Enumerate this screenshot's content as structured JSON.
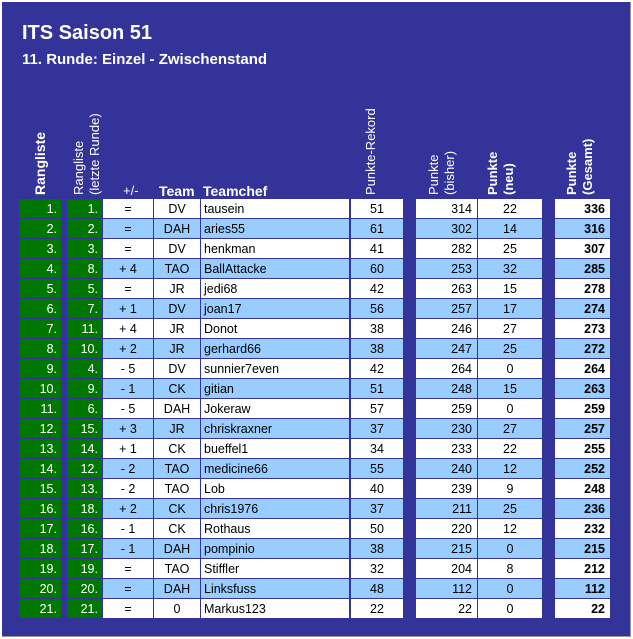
{
  "title": "ITS Saison 51",
  "subtitle": "11. Runde: Einzel - Zwischenstand",
  "headers": {
    "rangliste": "Rangliste",
    "rangliste_alt_1": "Rangliste",
    "rangliste_alt_2": "(letzte Runde)",
    "diff": "+/-",
    "team": "Team",
    "teamchef": "Teamchef",
    "rekord": "Punkte-Rekord",
    "bisher_1": "Punkte",
    "bisher_2": "(bisher)",
    "neu_1": "Punkte",
    "neu_2": "(neu)",
    "gesamt_1": "Punkte",
    "gesamt_2": "(Gesamt)"
  },
  "rows": [
    {
      "rank": "1.",
      "prev": "1.",
      "diff": "=",
      "team": "DV",
      "chef": "tausein",
      "rekord": "51",
      "bisher": "314",
      "neu": "22",
      "gesamt": "336"
    },
    {
      "rank": "2.",
      "prev": "2.",
      "diff": "=",
      "team": "DAH",
      "chef": "aries55",
      "rekord": "61",
      "bisher": "302",
      "neu": "14",
      "gesamt": "316"
    },
    {
      "rank": "3.",
      "prev": "3.",
      "diff": "=",
      "team": "DV",
      "chef": "henkman",
      "rekord": "41",
      "bisher": "282",
      "neu": "25",
      "gesamt": "307"
    },
    {
      "rank": "4.",
      "prev": "8.",
      "diff": "+ 4",
      "team": "TAO",
      "chef": "BallAttacke",
      "rekord": "60",
      "bisher": "253",
      "neu": "32",
      "gesamt": "285"
    },
    {
      "rank": "5.",
      "prev": "5.",
      "diff": "=",
      "team": "JR",
      "chef": "jedi68",
      "rekord": "42",
      "bisher": "263",
      "neu": "15",
      "gesamt": "278"
    },
    {
      "rank": "6.",
      "prev": "7.",
      "diff": "+ 1",
      "team": "DV",
      "chef": "joan17",
      "rekord": "56",
      "bisher": "257",
      "neu": "17",
      "gesamt": "274"
    },
    {
      "rank": "7.",
      "prev": "11.",
      "diff": "+ 4",
      "team": "JR",
      "chef": "Donot",
      "rekord": "38",
      "bisher": "246",
      "neu": "27",
      "gesamt": "273"
    },
    {
      "rank": "8.",
      "prev": "10.",
      "diff": "+ 2",
      "team": "JR",
      "chef": "gerhard66",
      "rekord": "38",
      "bisher": "247",
      "neu": "25",
      "gesamt": "272"
    },
    {
      "rank": "9.",
      "prev": "4.",
      "diff": "- 5",
      "team": "DV",
      "chef": "sunnier7even",
      "rekord": "42",
      "bisher": "264",
      "neu": "0",
      "gesamt": "264"
    },
    {
      "rank": "10.",
      "prev": "9.",
      "diff": "- 1",
      "team": "CK",
      "chef": "gitian",
      "rekord": "51",
      "bisher": "248",
      "neu": "15",
      "gesamt": "263"
    },
    {
      "rank": "11.",
      "prev": "6.",
      "diff": "- 5",
      "team": "DAH",
      "chef": "Jokeraw",
      "rekord": "57",
      "bisher": "259",
      "neu": "0",
      "gesamt": "259"
    },
    {
      "rank": "12.",
      "prev": "15.",
      "diff": "+ 3",
      "team": "JR",
      "chef": "chriskraxner",
      "rekord": "37",
      "bisher": "230",
      "neu": "27",
      "gesamt": "257"
    },
    {
      "rank": "13.",
      "prev": "14.",
      "diff": "+ 1",
      "team": "CK",
      "chef": "bueffel1",
      "rekord": "34",
      "bisher": "233",
      "neu": "22",
      "gesamt": "255"
    },
    {
      "rank": "14.",
      "prev": "12.",
      "diff": "- 2",
      "team": "TAO",
      "chef": "medicine66",
      "rekord": "55",
      "bisher": "240",
      "neu": "12",
      "gesamt": "252"
    },
    {
      "rank": "15.",
      "prev": "13.",
      "diff": "- 2",
      "team": "TAO",
      "chef": "Lob",
      "rekord": "40",
      "bisher": "239",
      "neu": "9",
      "gesamt": "248"
    },
    {
      "rank": "16.",
      "prev": "18.",
      "diff": "+ 2",
      "team": "CK",
      "chef": "chris1976",
      "rekord": "37",
      "bisher": "211",
      "neu": "25",
      "gesamt": "236"
    },
    {
      "rank": "17.",
      "prev": "16.",
      "diff": "- 1",
      "team": "CK",
      "chef": "Rothaus",
      "rekord": "50",
      "bisher": "220",
      "neu": "12",
      "gesamt": "232"
    },
    {
      "rank": "18.",
      "prev": "17.",
      "diff": "- 1",
      "team": "DAH",
      "chef": "pompinio",
      "rekord": "38",
      "bisher": "215",
      "neu": "0",
      "gesamt": "215"
    },
    {
      "rank": "19.",
      "prev": "19.",
      "diff": "=",
      "team": "TAO",
      "chef": "Stiffler",
      "rekord": "32",
      "bisher": "204",
      "neu": "8",
      "gesamt": "212"
    },
    {
      "rank": "20.",
      "prev": "20.",
      "diff": "=",
      "team": "DAH",
      "chef": "Linksfuss",
      "rekord": "48",
      "bisher": "112",
      "neu": "0",
      "gesamt": "112"
    },
    {
      "rank": "21.",
      "prev": "21.",
      "diff": "=",
      "team": "0",
      "chef": "Markus123",
      "rekord": "22",
      "bisher": "22",
      "neu": "0",
      "gesamt": "22"
    }
  ],
  "colors": {
    "background": "#333399",
    "rank_green": "#007700",
    "row_light": "#ffffff",
    "row_blue": "#99ccff"
  }
}
